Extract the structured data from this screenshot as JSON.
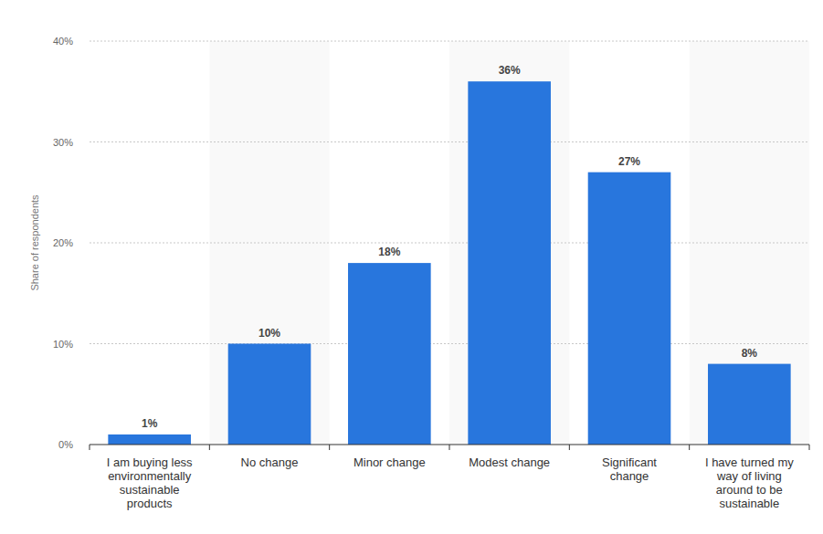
{
  "chart_data": {
    "type": "bar",
    "y_label": "Share of respondents",
    "categories": [
      "I am buying less environmentally sustainable products",
      "No change",
      "Minor change",
      "Modest change",
      "Significant change",
      "I have turned my way of living around to be sustainable"
    ],
    "values": [
      1,
      10,
      18,
      36,
      27,
      8
    ],
    "value_labels": [
      "1%",
      "10%",
      "18%",
      "36%",
      "27%",
      "8%"
    ],
    "color": "#2876dd",
    "ylim": [
      0,
      40
    ],
    "yticks": [
      {
        "value": 0,
        "label": "0%"
      },
      {
        "value": 10,
        "label": "10%"
      },
      {
        "value": 20,
        "label": "20%"
      },
      {
        "value": 30,
        "label": "30%"
      },
      {
        "value": 40,
        "label": "40%"
      }
    ],
    "grid": true,
    "data_labels": true
  }
}
